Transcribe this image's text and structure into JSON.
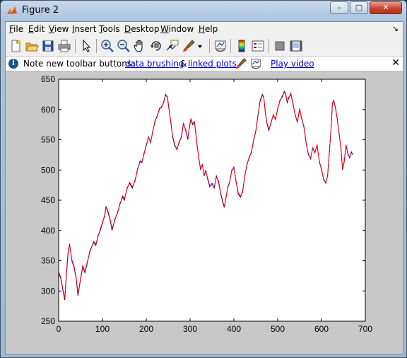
{
  "window": {
    "title": "Figure 2",
    "min_label": "–",
    "max_label": "□",
    "close_label": "✕"
  },
  "menu": {
    "items": [
      {
        "accel": "F",
        "rest": "ile"
      },
      {
        "accel": "E",
        "rest": "dit"
      },
      {
        "accel": "V",
        "rest": "iew"
      },
      {
        "accel": "I",
        "rest": "nsert"
      },
      {
        "accel": "T",
        "rest": "ools"
      },
      {
        "accel": "D",
        "rest": "esktop"
      },
      {
        "accel": "W",
        "rest": "indow"
      },
      {
        "accel": "H",
        "rest": "elp"
      }
    ],
    "dock_glyph": "↘"
  },
  "toolbar": {
    "icons": [
      "new-figure-icon",
      "open-file-icon",
      "save-icon",
      "print-icon",
      "edit-plot-arrow-icon",
      "zoom-in-icon",
      "zoom-out-icon",
      "pan-hand-icon",
      "rotate-3d-icon",
      "data-cursor-icon",
      "brush-icon",
      "brush-dropdown-icon",
      "link-plot-icon",
      "colorbar-icon",
      "legend-icon",
      "hide-plot-tools-icon",
      "show-plot-tools-icon"
    ]
  },
  "infobar": {
    "icon_glyph": "i",
    "text_prefix": "Note new toolbar buttons:",
    "link_brushing": "data brushing",
    "amp": "&",
    "link_linked": "linked plots",
    "link_video": "Play video",
    "close_glyph": "✕"
  },
  "chart_data": {
    "type": "line",
    "title": "",
    "xlabel": "",
    "ylabel": "",
    "xlim": [
      0,
      700
    ],
    "ylim": [
      250,
      650
    ],
    "x_ticks": [
      0,
      100,
      200,
      300,
      400,
      500,
      600,
      700
    ],
    "y_ticks": [
      250,
      300,
      350,
      400,
      450,
      500,
      550,
      600,
      650
    ],
    "grid": false,
    "series": [
      {
        "color": "#0000ff",
        "points": [
          [
            0,
            330
          ],
          [
            5,
            320
          ],
          [
            10,
            300
          ],
          [
            14,
            285
          ],
          [
            18,
            330
          ],
          [
            22,
            365
          ],
          [
            25,
            378
          ],
          [
            30,
            350
          ],
          [
            35,
            340
          ],
          [
            40,
            320
          ],
          [
            44,
            292
          ],
          [
            48,
            310
          ],
          [
            55,
            340
          ],
          [
            60,
            330
          ],
          [
            65,
            345
          ],
          [
            72,
            368
          ],
          [
            80,
            380
          ],
          [
            85,
            375
          ],
          [
            90,
            392
          ],
          [
            95,
            400
          ],
          [
            100,
            412
          ],
          [
            105,
            425
          ],
          [
            108,
            440
          ],
          [
            112,
            432
          ],
          [
            118,
            415
          ],
          [
            122,
            400
          ],
          [
            128,
            418
          ],
          [
            135,
            430
          ],
          [
            140,
            445
          ],
          [
            146,
            455
          ],
          [
            150,
            450
          ],
          [
            156,
            470
          ],
          [
            162,
            478
          ],
          [
            168,
            470
          ],
          [
            175,
            485
          ],
          [
            180,
            500
          ],
          [
            186,
            515
          ],
          [
            190,
            512
          ],
          [
            195,
            528
          ],
          [
            200,
            540
          ],
          [
            205,
            555
          ],
          [
            210,
            545
          ],
          [
            215,
            565
          ],
          [
            220,
            580
          ],
          [
            225,
            590
          ],
          [
            230,
            600
          ],
          [
            235,
            605
          ],
          [
            240,
            612
          ],
          [
            244,
            625
          ],
          [
            248,
            620
          ],
          [
            252,
            600
          ],
          [
            256,
            580
          ],
          [
            260,
            555
          ],
          [
            265,
            540
          ],
          [
            270,
            535
          ],
          [
            275,
            545
          ],
          [
            280,
            555
          ],
          [
            285,
            578
          ],
          [
            290,
            565
          ],
          [
            295,
            550
          ],
          [
            298,
            570
          ],
          [
            302,
            585
          ],
          [
            306,
            575
          ],
          [
            310,
            580
          ],
          [
            313,
            560
          ],
          [
            316,
            540
          ],
          [
            320,
            520
          ],
          [
            324,
            500
          ],
          [
            328,
            510
          ],
          [
            332,
            490
          ],
          [
            336,
            500
          ],
          [
            340,
            485
          ],
          [
            345,
            472
          ],
          [
            350,
            478
          ],
          [
            355,
            470
          ],
          [
            360,
            490
          ],
          [
            365,
            480
          ],
          [
            370,
            460
          ],
          [
            375,
            445
          ],
          [
            378,
            438
          ],
          [
            382,
            455
          ],
          [
            386,
            470
          ],
          [
            390,
            480
          ],
          [
            395,
            498
          ],
          [
            400,
            505
          ],
          [
            405,
            480
          ],
          [
            410,
            460
          ],
          [
            415,
            455
          ],
          [
            420,
            465
          ],
          [
            425,
            490
          ],
          [
            430,
            510
          ],
          [
            435,
            520
          ],
          [
            440,
            530
          ],
          [
            445,
            548
          ],
          [
            450,
            565
          ],
          [
            455,
            590
          ],
          [
            460,
            615
          ],
          [
            465,
            625
          ],
          [
            468,
            620
          ],
          [
            472,
            595
          ],
          [
            476,
            575
          ],
          [
            480,
            565
          ],
          [
            485,
            580
          ],
          [
            490,
            590
          ],
          [
            495,
            585
          ],
          [
            500,
            600
          ],
          [
            505,
            615
          ],
          [
            510,
            620
          ],
          [
            515,
            630
          ],
          [
            518,
            625
          ],
          [
            522,
            610
          ],
          [
            525,
            620
          ],
          [
            530,
            625
          ],
          [
            535,
            610
          ],
          [
            540,
            590
          ],
          [
            545,
            580
          ],
          [
            550,
            600
          ],
          [
            555,
            585
          ],
          [
            560,
            570
          ],
          [
            565,
            545
          ],
          [
            570,
            525
          ],
          [
            575,
            520
          ],
          [
            580,
            535
          ],
          [
            585,
            530
          ],
          [
            590,
            540
          ],
          [
            595,
            515
          ],
          [
            600,
            500
          ],
          [
            605,
            485
          ],
          [
            610,
            478
          ],
          [
            614,
            492
          ],
          [
            618,
            530
          ],
          [
            622,
            570
          ],
          [
            625,
            610
          ],
          [
            628,
            615
          ],
          [
            632,
            602
          ],
          [
            636,
            585
          ],
          [
            640,
            560
          ],
          [
            644,
            540
          ],
          [
            648,
            500
          ],
          [
            652,
            515
          ],
          [
            656,
            540
          ],
          [
            660,
            528
          ],
          [
            664,
            520
          ],
          [
            668,
            530
          ],
          [
            672,
            525
          ]
        ]
      },
      {
        "color": "#ff0000",
        "points": [
          [
            0,
            332
          ],
          [
            5,
            322
          ],
          [
            10,
            302
          ],
          [
            14,
            288
          ],
          [
            18,
            334
          ],
          [
            22,
            368
          ],
          [
            25,
            376
          ],
          [
            30,
            352
          ],
          [
            35,
            342
          ],
          [
            40,
            322
          ],
          [
            44,
            295
          ],
          [
            48,
            312
          ],
          [
            55,
            342
          ],
          [
            60,
            332
          ],
          [
            65,
            347
          ],
          [
            72,
            366
          ],
          [
            80,
            382
          ],
          [
            85,
            377
          ],
          [
            90,
            390
          ],
          [
            95,
            402
          ],
          [
            100,
            414
          ],
          [
            105,
            423
          ],
          [
            108,
            438
          ],
          [
            112,
            434
          ],
          [
            118,
            417
          ],
          [
            122,
            403
          ],
          [
            128,
            416
          ],
          [
            135,
            432
          ],
          [
            140,
            443
          ],
          [
            146,
            457
          ],
          [
            150,
            452
          ],
          [
            156,
            468
          ],
          [
            162,
            480
          ],
          [
            168,
            472
          ],
          [
            175,
            483
          ],
          [
            180,
            502
          ],
          [
            186,
            513
          ],
          [
            190,
            514
          ],
          [
            195,
            526
          ],
          [
            200,
            542
          ],
          [
            205,
            553
          ],
          [
            210,
            547
          ],
          [
            215,
            563
          ],
          [
            220,
            582
          ],
          [
            225,
            588
          ],
          [
            230,
            602
          ],
          [
            235,
            603
          ],
          [
            240,
            614
          ],
          [
            244,
            623
          ],
          [
            248,
            622
          ],
          [
            252,
            602
          ],
          [
            256,
            578
          ],
          [
            260,
            557
          ],
          [
            265,
            542
          ],
          [
            270,
            533
          ],
          [
            275,
            547
          ],
          [
            280,
            553
          ],
          [
            285,
            576
          ],
          [
            290,
            567
          ],
          [
            295,
            552
          ],
          [
            298,
            568
          ],
          [
            302,
            583
          ],
          [
            306,
            577
          ],
          [
            310,
            578
          ],
          [
            313,
            562
          ],
          [
            316,
            542
          ],
          [
            320,
            518
          ],
          [
            324,
            502
          ],
          [
            328,
            508
          ],
          [
            332,
            492
          ],
          [
            336,
            498
          ],
          [
            340,
            487
          ],
          [
            345,
            474
          ],
          [
            350,
            476
          ],
          [
            355,
            472
          ],
          [
            360,
            488
          ],
          [
            365,
            482
          ],
          [
            370,
            462
          ],
          [
            375,
            447
          ],
          [
            378,
            440
          ],
          [
            382,
            453
          ],
          [
            386,
            472
          ],
          [
            390,
            478
          ],
          [
            395,
            500
          ],
          [
            400,
            503
          ],
          [
            405,
            482
          ],
          [
            410,
            462
          ],
          [
            415,
            457
          ],
          [
            420,
            463
          ],
          [
            425,
            492
          ],
          [
            430,
            508
          ],
          [
            435,
            522
          ],
          [
            440,
            528
          ],
          [
            445,
            550
          ],
          [
            450,
            563
          ],
          [
            455,
            592
          ],
          [
            460,
            613
          ],
          [
            465,
            623
          ],
          [
            468,
            622
          ],
          [
            472,
            593
          ],
          [
            476,
            577
          ],
          [
            480,
            567
          ],
          [
            485,
            578
          ],
          [
            490,
            592
          ],
          [
            495,
            583
          ],
          [
            500,
            602
          ],
          [
            505,
            613
          ],
          [
            510,
            622
          ],
          [
            515,
            628
          ],
          [
            518,
            627
          ],
          [
            522,
            612
          ],
          [
            525,
            618
          ],
          [
            530,
            627
          ],
          [
            535,
            608
          ],
          [
            540,
            592
          ],
          [
            545,
            578
          ],
          [
            550,
            602
          ],
          [
            555,
            583
          ],
          [
            560,
            572
          ],
          [
            565,
            543
          ],
          [
            570,
            527
          ],
          [
            575,
            518
          ],
          [
            580,
            537
          ],
          [
            585,
            528
          ],
          [
            590,
            542
          ],
          [
            595,
            513
          ],
          [
            600,
            502
          ],
          [
            605,
            483
          ],
          [
            610,
            480
          ],
          [
            614,
            490
          ],
          [
            618,
            532
          ],
          [
            622,
            568
          ],
          [
            625,
            612
          ],
          [
            628,
            613
          ],
          [
            632,
            604
          ],
          [
            636,
            583
          ],
          [
            640,
            562
          ],
          [
            644,
            538
          ],
          [
            648,
            502
          ],
          [
            652,
            513
          ],
          [
            656,
            542
          ],
          [
            660,
            526
          ],
          [
            664,
            522
          ],
          [
            668,
            528
          ],
          [
            672,
            527
          ]
        ]
      }
    ]
  }
}
